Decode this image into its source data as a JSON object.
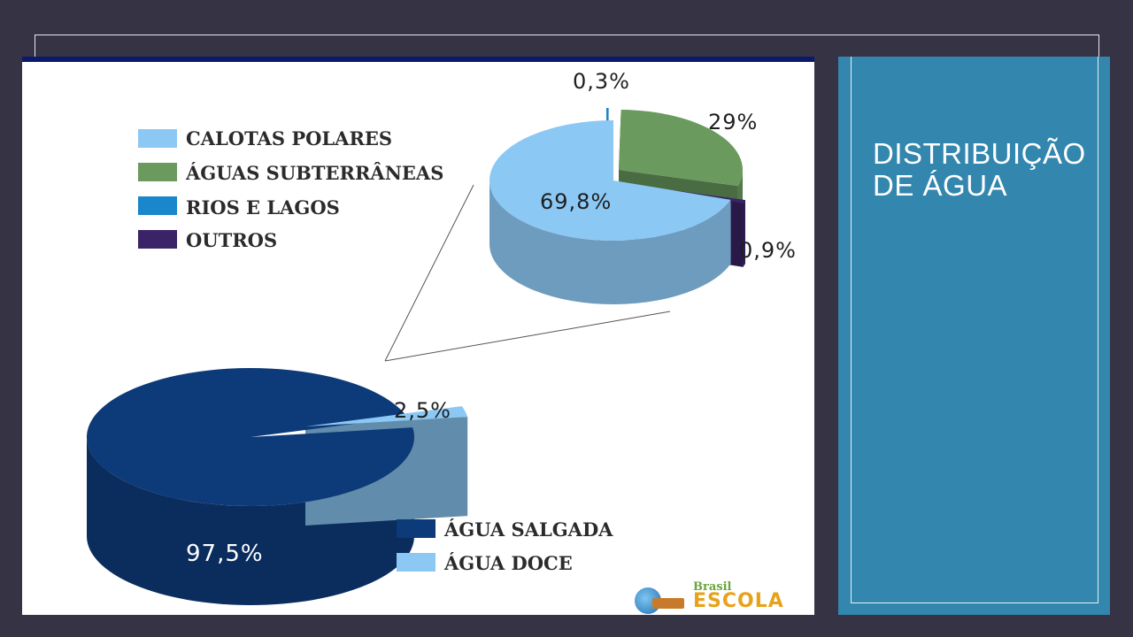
{
  "slide": {
    "title": "DISTRIBUIÇÃO DE ÁGUA"
  },
  "logo": {
    "line1": "Brasil",
    "line2": "ESCOLA"
  },
  "colors": {
    "background": "#363345",
    "title_panel": "#3386ad",
    "agua_salgada": "#0d3a78",
    "agua_doce": "#8cc8f4",
    "calotas_polares": "#8cc8f4",
    "aguas_subterraneas": "#6a9a5e",
    "rios_e_lagos": "#1a86cc",
    "outros": "#3a2467"
  },
  "chart_data": [
    {
      "type": "pie",
      "categories": [
        "ÁGUA SALGADA",
        "ÁGUA DOCE"
      ],
      "values": [
        97.5,
        2.5
      ],
      "labels": [
        "97,5%",
        "2,5%"
      ],
      "legend": [
        "ÁGUA SALGADA",
        "ÁGUA DOCE"
      ],
      "legend_position": "bottom-right",
      "style": "3d"
    },
    {
      "type": "pie",
      "categories": [
        "CALOTAS POLARES",
        "ÁGUAS SUBTERRÂNEAS",
        "RIOS E LAGOS",
        "OUTROS"
      ],
      "values": [
        69.8,
        29,
        0.3,
        0.9
      ],
      "labels": [
        "69,8%",
        "29%",
        "0,3%",
        "0,9%"
      ],
      "legend": [
        "CALOTAS POLARES",
        "ÁGUAS SUBTERRÂNEAS",
        "RIOS E LAGOS",
        "OUTROS"
      ],
      "legend_position": "top-left",
      "style": "3d exploded"
    }
  ]
}
